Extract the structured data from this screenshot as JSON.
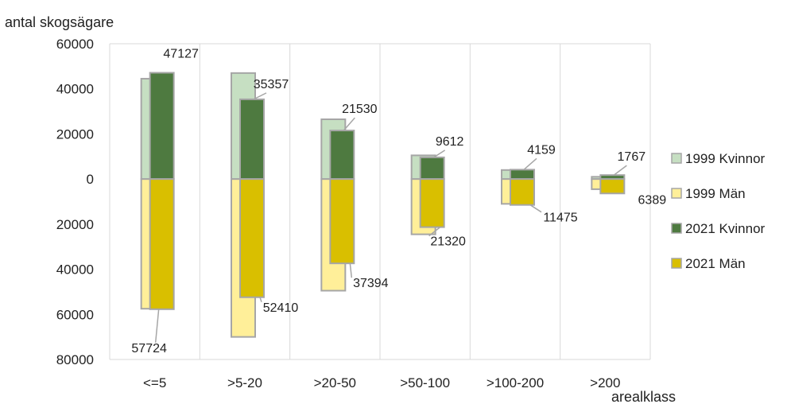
{
  "chart_data": {
    "type": "bar",
    "ylabel": "antal skogsägare",
    "xlabel": "arealklass",
    "categories": [
      "<=5",
      ">5-20",
      ">20-50",
      ">50-100",
      ">100-200",
      ">200"
    ],
    "ylim": [
      -80000,
      60000
    ],
    "yticks": [
      60000,
      40000,
      20000,
      0,
      -20000,
      -40000,
      -60000,
      -80000
    ],
    "ytick_labels": [
      "60000",
      "40000",
      "20000",
      "0",
      "20000",
      "40000",
      "60000",
      "80000"
    ],
    "grid": "vertical",
    "legend_position": "right",
    "series": [
      {
        "name": "1999 Kvinnor",
        "color": "#c6dfc2",
        "values": [
          44500,
          47000,
          26500,
          10500,
          4000,
          1000
        ]
      },
      {
        "name": "1999 Män",
        "color": "#ffef99",
        "values": [
          -57500,
          -70000,
          -49500,
          -24500,
          -11000,
          -4500
        ]
      },
      {
        "name": "2021 Kvinnor",
        "color": "#4e7a40",
        "values": [
          47127,
          35357,
          21530,
          9612,
          4159,
          1767
        ]
      },
      {
        "name": "2021 Män",
        "color": "#d9bf00",
        "values": [
          -57724,
          -52410,
          -37394,
          -21320,
          -11475,
          -6389
        ]
      }
    ],
    "data_labels": {
      "2021 Kvinnor": [
        "47127",
        "35357",
        "21530",
        "9612",
        "4159",
        "1767"
      ],
      "2021 Män": [
        "57724",
        "52410",
        "37394",
        "21320",
        "11475",
        "6389"
      ]
    }
  }
}
